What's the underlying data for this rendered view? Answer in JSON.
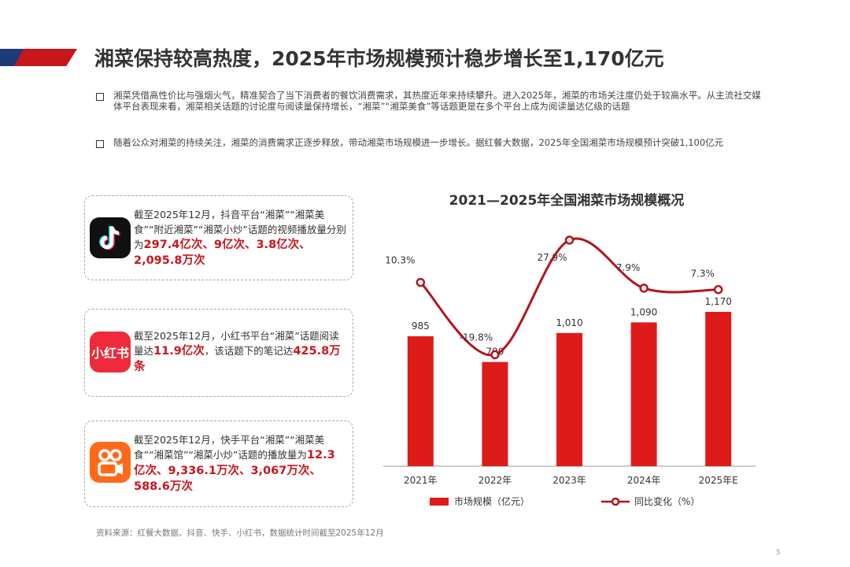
{
  "page_title": "湘菜保持较高热度，2025年市场规模预计稳步增长至1,170亿元",
  "bullets": [
    "湘菜凭借高性价比与强烟火气，精准契合了当下消费者的餐饮消费需求，其热度近年来持续攀升。进入2025年，湘菜的市场关注度仍处于较高水平。从主流社交媒体平台表现来看，湘菜相关话题的讨论度与阅读量保持增长，“湘菜”“湘菜美食”等话题更是在多个平台上成为阅读量达亿级的话题",
    "随着公众对湘菜的持续关注，湘菜的消费需求正逐步释放，带动湘菜市场规模进一步增长。据红餐大数据，2025年全国湘菜市场规模预计突破1,100亿元"
  ],
  "cards": [
    {
      "icon": "douyin-icon",
      "text": "截至2025年12月，抖音平台“湘菜”“湘菜美食”“附近湘菜”“湘菜小炒”话题的视频播放量分别为",
      "highlight": "297.4亿次、9亿次、3.8亿次、2,095.8万次",
      "suffix": ""
    },
    {
      "icon": "xiaohongshu-icon",
      "icon_text": "小红书",
      "text": "截至2025年12月，小红书平台“湘菜”话题阅读量达",
      "highlight": "11.9亿次",
      "suffix": "，该话题下的笔记达",
      "highlight2": "425.8万条"
    },
    {
      "icon": "kuaishou-icon",
      "text": "截至2025年12月，快手平台“湘菜”“湘菜美食”“湘菜馆”“湘菜小炒”话题的播放量为",
      "highlight": "12.3亿次、9,336.1万次、3,067万次、588.6万次",
      "suffix": ""
    }
  ],
  "chart_data": {
    "type": "bar",
    "title": "2021—2025年全国湘菜市场规模概况",
    "categories": [
      "2021年",
      "2022年",
      "2023年",
      "2024年",
      "2025年E"
    ],
    "series": [
      {
        "name": "市场规模（亿元）",
        "type": "bar",
        "values": [
          985,
          790,
          1010,
          1090,
          1170
        ],
        "labels": [
          "985",
          "790",
          "1,010",
          "1,090",
          "1,170"
        ]
      },
      {
        "name": "同比变化（%）",
        "type": "line",
        "values": [
          10.3,
          -19.8,
          27.9,
          7.9,
          7.3
        ],
        "labels": [
          "10.3%",
          "-19.8%",
          "27.9%",
          "7.9%",
          "7.3%"
        ]
      }
    ],
    "colors": {
      "bar": "#dd1c1a",
      "line": "#b3141c"
    },
    "legend_position": "bottom"
  },
  "source": "资料来源：红餐大数据、抖音、快手、小红书，数据统计时间截至2025年12月",
  "page_number": "5"
}
